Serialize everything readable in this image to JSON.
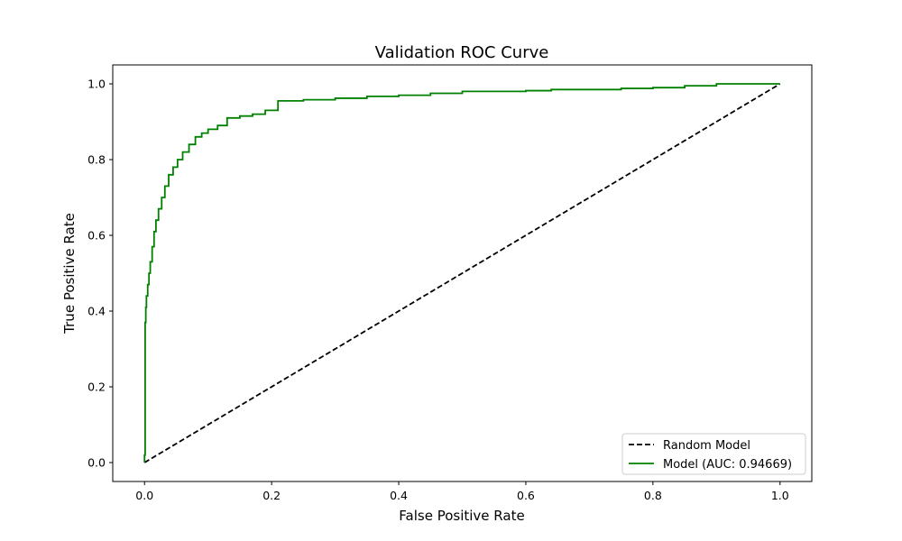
{
  "chart_data": {
    "type": "line",
    "title": "Validation ROC Curve",
    "xlabel": "False Positive Rate",
    "ylabel": "True Positive Rate",
    "xlim": [
      -0.05,
      1.05
    ],
    "ylim": [
      -0.05,
      1.05
    ],
    "xticks": [
      0.0,
      0.2,
      0.4,
      0.6,
      0.8,
      1.0
    ],
    "yticks": [
      0.0,
      0.2,
      0.4,
      0.6,
      0.8,
      1.0
    ],
    "xtick_labels": [
      "0.0",
      "0.2",
      "0.4",
      "0.6",
      "0.8",
      "1.0"
    ],
    "ytick_labels": [
      "0.0",
      "0.2",
      "0.4",
      "0.6",
      "0.8",
      "1.0"
    ],
    "grid": false,
    "legend_position": "lower-right",
    "series": [
      {
        "name": "Random Model",
        "color": "#000000",
        "style": "dashed",
        "x": [
          0.0,
          1.0
        ],
        "y": [
          0.0,
          1.0
        ]
      },
      {
        "name": "Model (AUC: 0.94669)",
        "color": "#008000",
        "style": "solid",
        "x": [
          0.0,
          0.0,
          0.001,
          0.001,
          0.002,
          0.003,
          0.005,
          0.007,
          0.009,
          0.012,
          0.015,
          0.018,
          0.022,
          0.027,
          0.032,
          0.038,
          0.045,
          0.052,
          0.06,
          0.07,
          0.08,
          0.09,
          0.1,
          0.115,
          0.13,
          0.15,
          0.17,
          0.19,
          0.21,
          0.25,
          0.3,
          0.35,
          0.4,
          0.45,
          0.5,
          0.55,
          0.6,
          0.64,
          0.7,
          0.75,
          0.8,
          0.85,
          0.9,
          0.95,
          1.0
        ],
        "y": [
          0.0,
          0.02,
          0.33,
          0.37,
          0.41,
          0.44,
          0.47,
          0.5,
          0.53,
          0.57,
          0.61,
          0.64,
          0.67,
          0.7,
          0.73,
          0.76,
          0.78,
          0.8,
          0.82,
          0.84,
          0.86,
          0.87,
          0.88,
          0.89,
          0.91,
          0.915,
          0.92,
          0.93,
          0.955,
          0.958,
          0.962,
          0.967,
          0.97,
          0.975,
          0.98,
          0.98,
          0.982,
          0.985,
          0.985,
          0.988,
          0.99,
          0.995,
          1.0,
          1.0,
          1.0
        ]
      }
    ]
  }
}
